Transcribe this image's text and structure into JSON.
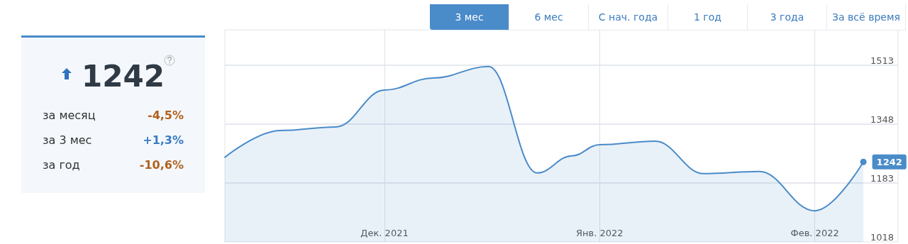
{
  "chart_data": [
    {
      "type": "other",
      "title": "1242",
      "annotations": [
        "за месяц",
        "-4,5%",
        "за 3 мес",
        "+1,3%",
        "за год",
        "-10,6%"
      ],
      "colors": [
        "#b0611c",
        "#3a7bbf",
        "#b0611c"
      ]
    },
    {
      "type": "area",
      "annotations": [
        "3 мес",
        "6 мес",
        "С нач. года",
        "1 год",
        "3 года",
        "За всё время"
      ],
      "x": [
        "2021-11-08",
        "2021-11-16",
        "2021-11-24",
        "2021-12-01",
        "2021-12-08",
        "2021-12-16",
        "2021-12-23",
        "2021-12-28",
        "2022-01-01",
        "2022-01-09",
        "2022-01-16",
        "2022-01-24",
        "2022-02-01",
        "2022-02-08"
      ],
      "series": [
        {
          "color": "#4a8bc9",
          "values": [
            1255,
            1330,
            1340,
            1443,
            1477,
            1509,
            1211,
            1259,
            1290,
            1300,
            1209,
            1215,
            1105,
            1242
          ],
          "value_labels": [
            null,
            null,
            null,
            null,
            null,
            null,
            null,
            null,
            null,
            null,
            null,
            null,
            null,
            "1242"
          ]
        }
      ],
      "xlim": [
        "2021-11-08",
        "2022-02-13"
      ],
      "xticks": [
        {
          "value": "2021-12-01",
          "label": "Дек. 2021"
        },
        {
          "value": "2022-01-01",
          "label": "Янв. 2022"
        },
        {
          "value": "2022-02-01",
          "label": "Фев. 2022"
        }
      ],
      "ylim": [
        1018,
        1612
      ],
      "yticks": [
        1018,
        1183,
        1348,
        1513
      ],
      "grid": true
    }
  ]
}
